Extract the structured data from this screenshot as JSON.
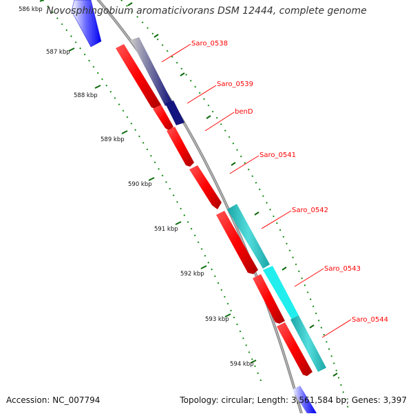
{
  "title": "Novosphingobium aromaticivorans DSM 12444, complete genome",
  "footer": {
    "accession": "Accession: NC_007794",
    "summary": "Topology: circular; Length: 3,561,584 bp; Genes: 3,397"
  },
  "scale_labels": [
    "586 kbp",
    "587 kbp",
    "588 kbp",
    "589 kbp",
    "590 kbp",
    "591 kbp",
    "592 kbp",
    "593 kbp",
    "594 kbp"
  ],
  "gene_labels": [
    "Saro_0538",
    "Saro_0539",
    "benD",
    "Saro_0541",
    "Saro_0542",
    "Saro_0543",
    "Saro_0544"
  ],
  "colors": {
    "backbone": "#888888",
    "gene_red": "#ff0000",
    "gene_blue": "#1a1aff",
    "gene_navy": "#12127a",
    "gene_cyan": "#33cccc",
    "gene_cyan_light": "#22eeee",
    "tick": "#006600",
    "label": "#ff0000"
  }
}
